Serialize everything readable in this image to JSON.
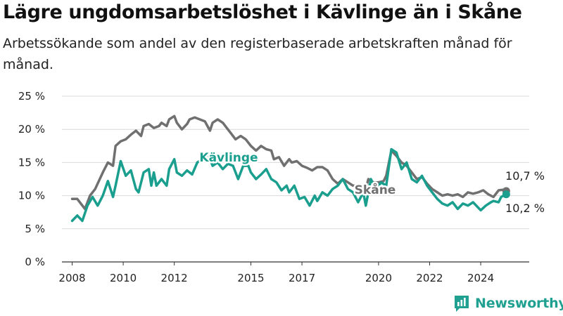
{
  "header": {
    "title": "Lägre ungdomsarbetslöshet i Kävlinge än i Skåne",
    "subtitle": "Arbetssökande som andel av den registerbaserade arbetskraften månad för månad."
  },
  "brand": {
    "name": "Newsworthy",
    "icon": "chart-logo-icon",
    "color": "#20a090"
  },
  "colors": {
    "kavlinge": "#1a9e8e",
    "skane": "#707070",
    "grid": "#d9d9d9"
  },
  "chart_data": {
    "type": "line",
    "title": "Lägre ungdomsarbetslöshet i Kävlinge än i Skåne",
    "subtitle": "Arbetssökande som andel av den registerbaserade arbetskraften månad för månad.",
    "xlabel": "",
    "ylabel": "",
    "x_range": [
      2008.0,
      2025.0
    ],
    "ylim": [
      0,
      25
    ],
    "y_ticks": [
      0,
      5,
      10,
      15,
      20,
      25
    ],
    "y_tick_labels": [
      "0 %",
      "5 %",
      "10 %",
      "15 %",
      "20 %",
      "25 %"
    ],
    "x_ticks": [
      2008,
      2010,
      2012,
      2015,
      2017,
      2020,
      2022,
      2024
    ],
    "x_tick_labels": [
      "2008",
      "2010",
      "2012",
      "2015",
      "2017",
      "2020",
      "2022",
      "2024"
    ],
    "grid": "horizontal",
    "legend": "none",
    "series": [
      {
        "name": "Skåne",
        "end_label": "10,7 %",
        "points": [
          [
            2008.0,
            9.5
          ],
          [
            2008.2,
            9.5
          ],
          [
            2008.5,
            8.0
          ],
          [
            2008.7,
            10.0
          ],
          [
            2008.9,
            11.0
          ],
          [
            2009.2,
            13.5
          ],
          [
            2009.4,
            15.0
          ],
          [
            2009.6,
            14.5
          ],
          [
            2009.7,
            17.5
          ],
          [
            2009.9,
            18.2
          ],
          [
            2010.1,
            18.5
          ],
          [
            2010.3,
            19.2
          ],
          [
            2010.5,
            19.8
          ],
          [
            2010.7,
            19.0
          ],
          [
            2010.8,
            20.5
          ],
          [
            2011.0,
            20.8
          ],
          [
            2011.2,
            20.2
          ],
          [
            2011.4,
            20.5
          ],
          [
            2011.5,
            21.0
          ],
          [
            2011.7,
            20.5
          ],
          [
            2011.8,
            21.5
          ],
          [
            2012.0,
            22.0
          ],
          [
            2012.1,
            21.0
          ],
          [
            2012.3,
            20.0
          ],
          [
            2012.5,
            20.8
          ],
          [
            2012.6,
            21.5
          ],
          [
            2012.8,
            21.8
          ],
          [
            2013.0,
            21.5
          ],
          [
            2013.2,
            21.2
          ],
          [
            2013.4,
            19.8
          ],
          [
            2013.5,
            21.0
          ],
          [
            2013.7,
            21.5
          ],
          [
            2013.9,
            21.0
          ],
          [
            2014.1,
            20.0
          ],
          [
            2014.2,
            19.5
          ],
          [
            2014.4,
            18.5
          ],
          [
            2014.6,
            19.0
          ],
          [
            2014.8,
            18.5
          ],
          [
            2015.0,
            17.5
          ],
          [
            2015.2,
            16.8
          ],
          [
            2015.4,
            17.5
          ],
          [
            2015.6,
            17.0
          ],
          [
            2015.8,
            16.8
          ],
          [
            2015.9,
            15.5
          ],
          [
            2016.1,
            15.8
          ],
          [
            2016.3,
            14.5
          ],
          [
            2016.5,
            15.5
          ],
          [
            2016.6,
            15.0
          ],
          [
            2016.8,
            15.2
          ],
          [
            2017.0,
            14.5
          ],
          [
            2017.2,
            14.2
          ],
          [
            2017.4,
            13.8
          ],
          [
            2017.6,
            14.3
          ],
          [
            2017.8,
            14.3
          ],
          [
            2018.0,
            13.8
          ],
          [
            2018.2,
            12.5
          ],
          [
            2018.4,
            11.8
          ],
          [
            2018.6,
            12.5
          ],
          [
            2018.8,
            12.0
          ],
          [
            2019.0,
            11.5
          ],
          [
            2019.2,
            11.5
          ],
          [
            2019.5,
            11.0
          ],
          [
            2019.6,
            12.5
          ],
          [
            2019.8,
            12.0
          ],
          [
            2020.0,
            12.0
          ],
          [
            2020.2,
            12.2
          ],
          [
            2020.3,
            13.0
          ],
          [
            2020.5,
            16.8
          ],
          [
            2020.7,
            16.0
          ],
          [
            2020.9,
            15.0
          ],
          [
            2021.1,
            14.5
          ],
          [
            2021.3,
            13.5
          ],
          [
            2021.5,
            12.5
          ],
          [
            2021.7,
            12.8
          ],
          [
            2021.9,
            11.8
          ],
          [
            2022.1,
            11.0
          ],
          [
            2022.3,
            10.5
          ],
          [
            2022.5,
            10.0
          ],
          [
            2022.7,
            10.2
          ],
          [
            2022.9,
            10.0
          ],
          [
            2023.1,
            10.2
          ],
          [
            2023.3,
            9.8
          ],
          [
            2023.5,
            10.5
          ],
          [
            2023.7,
            10.3
          ],
          [
            2023.9,
            10.5
          ],
          [
            2024.1,
            10.8
          ],
          [
            2024.3,
            10.2
          ],
          [
            2024.5,
            9.8
          ],
          [
            2024.7,
            10.8
          ],
          [
            2024.9,
            10.9
          ],
          [
            2025.0,
            10.7
          ]
        ]
      },
      {
        "name": "Kävlinge",
        "end_label": "10,2 %",
        "points": [
          [
            2008.0,
            6.2
          ],
          [
            2008.2,
            7.0
          ],
          [
            2008.4,
            6.2
          ],
          [
            2008.6,
            8.5
          ],
          [
            2008.8,
            9.8
          ],
          [
            2009.0,
            8.5
          ],
          [
            2009.2,
            10.0
          ],
          [
            2009.4,
            12.2
          ],
          [
            2009.6,
            9.8
          ],
          [
            2009.7,
            11.5
          ],
          [
            2009.9,
            15.2
          ],
          [
            2010.1,
            13.0
          ],
          [
            2010.3,
            13.8
          ],
          [
            2010.5,
            11.0
          ],
          [
            2010.6,
            10.5
          ],
          [
            2010.8,
            13.5
          ],
          [
            2011.0,
            14.0
          ],
          [
            2011.1,
            11.5
          ],
          [
            2011.2,
            13.5
          ],
          [
            2011.3,
            11.5
          ],
          [
            2011.5,
            12.5
          ],
          [
            2011.7,
            11.5
          ],
          [
            2011.8,
            14.0
          ],
          [
            2012.0,
            15.5
          ],
          [
            2012.1,
            13.5
          ],
          [
            2012.3,
            13.0
          ],
          [
            2012.5,
            13.8
          ],
          [
            2012.7,
            13.2
          ],
          [
            2012.9,
            15.0
          ],
          [
            2013.1,
            15.5
          ],
          [
            2013.3,
            16.5
          ],
          [
            2013.5,
            14.5
          ],
          [
            2013.7,
            15.0
          ],
          [
            2013.9,
            14.0
          ],
          [
            2014.1,
            14.8
          ],
          [
            2014.3,
            14.5
          ],
          [
            2014.5,
            12.5
          ],
          [
            2014.7,
            14.5
          ],
          [
            2014.9,
            14.5
          ],
          [
            2015.0,
            13.5
          ],
          [
            2015.2,
            12.5
          ],
          [
            2015.4,
            13.2
          ],
          [
            2015.6,
            14.0
          ],
          [
            2015.8,
            12.5
          ],
          [
            2016.0,
            12.0
          ],
          [
            2016.2,
            10.8
          ],
          [
            2016.4,
            11.5
          ],
          [
            2016.5,
            10.5
          ],
          [
            2016.7,
            11.5
          ],
          [
            2016.9,
            9.5
          ],
          [
            2017.1,
            9.8
          ],
          [
            2017.3,
            8.5
          ],
          [
            2017.5,
            10.0
          ],
          [
            2017.6,
            9.2
          ],
          [
            2017.8,
            10.5
          ],
          [
            2018.0,
            10.0
          ],
          [
            2018.2,
            11.0
          ],
          [
            2018.4,
            11.5
          ],
          [
            2018.6,
            12.5
          ],
          [
            2018.8,
            11.0
          ],
          [
            2019.0,
            10.5
          ],
          [
            2019.2,
            9.0
          ],
          [
            2019.4,
            10.5
          ],
          [
            2019.5,
            8.5
          ],
          [
            2019.7,
            12.5
          ],
          [
            2019.9,
            11.0
          ],
          [
            2020.1,
            12.0
          ],
          [
            2020.3,
            11.5
          ],
          [
            2020.5,
            17.0
          ],
          [
            2020.7,
            16.5
          ],
          [
            2020.9,
            14.0
          ],
          [
            2021.1,
            15.0
          ],
          [
            2021.3,
            12.5
          ],
          [
            2021.5,
            12.0
          ],
          [
            2021.7,
            13.0
          ],
          [
            2021.9,
            11.5
          ],
          [
            2022.1,
            10.5
          ],
          [
            2022.3,
            9.5
          ],
          [
            2022.5,
            8.8
          ],
          [
            2022.7,
            8.5
          ],
          [
            2022.9,
            9.0
          ],
          [
            2023.1,
            8.0
          ],
          [
            2023.3,
            8.8
          ],
          [
            2023.5,
            8.5
          ],
          [
            2023.7,
            9.0
          ],
          [
            2023.9,
            8.2
          ],
          [
            2024.0,
            7.8
          ],
          [
            2024.2,
            8.5
          ],
          [
            2024.4,
            9.0
          ],
          [
            2024.5,
            9.2
          ],
          [
            2024.7,
            9.0
          ],
          [
            2024.8,
            9.8
          ],
          [
            2024.9,
            10.0
          ],
          [
            2025.0,
            10.2
          ]
        ]
      }
    ]
  }
}
